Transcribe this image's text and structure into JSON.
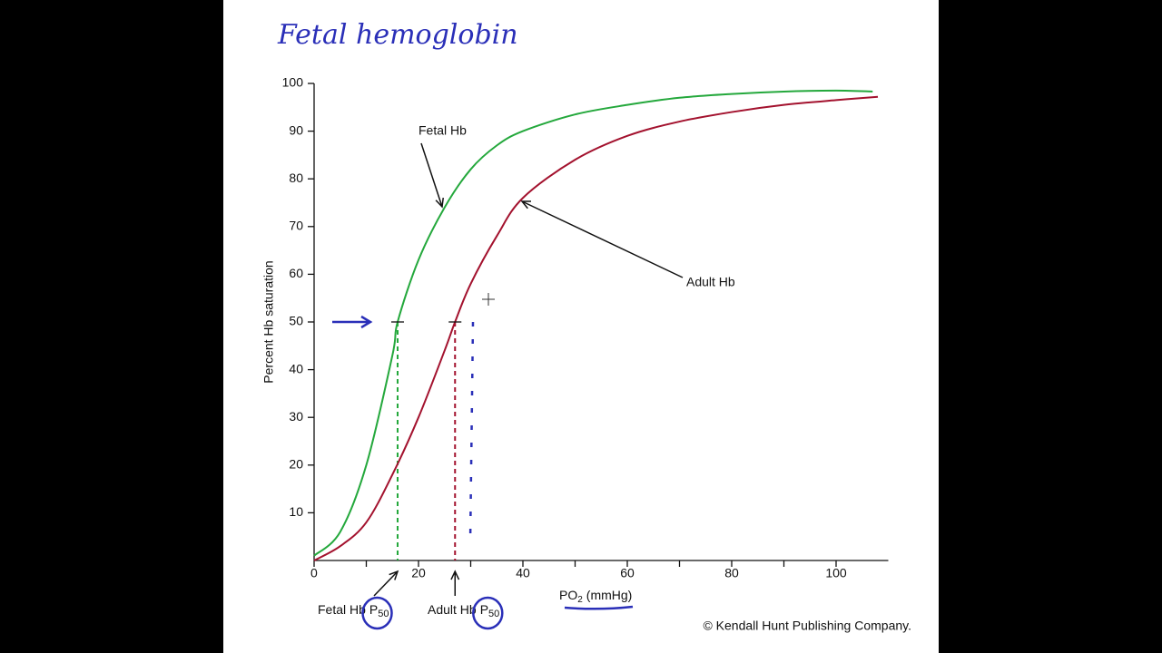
{
  "chart_data": {
    "type": "line",
    "title": "Fetal hemoglobin",
    "y_label": "Percent Hb saturation",
    "x_label": {
      "main": "PO",
      "sub": "2",
      "rest": "(mmHg)"
    },
    "xlim": [
      0,
      110
    ],
    "ylim": [
      0,
      100
    ],
    "xticks": [
      0,
      20,
      40,
      60,
      80,
      100
    ],
    "x_minor_ticks": [
      10,
      30,
      50,
      70,
      90
    ],
    "yticks": [
      10,
      20,
      30,
      40,
      50,
      60,
      70,
      80,
      90,
      100
    ],
    "series": [
      {
        "name": "Fetal Hb",
        "color": "#24a83c",
        "p50": 16,
        "x": [
          0,
          5,
          10,
          15,
          16,
          20,
          25,
          30,
          35,
          40,
          50,
          60,
          70,
          80,
          90,
          100,
          107
        ],
        "values": [
          1,
          6,
          20,
          43,
          50,
          63,
          74,
          82,
          87,
          90,
          93.5,
          95.5,
          97,
          97.8,
          98.3,
          98.5,
          98.3
        ]
      },
      {
        "name": "Adult Hb",
        "color": "#a3122e",
        "p50": 27,
        "x": [
          0,
          5,
          10,
          15,
          20,
          25,
          27,
          30,
          35,
          40,
          50,
          60,
          70,
          80,
          90,
          100,
          108
        ],
        "values": [
          0,
          3,
          8,
          18,
          30,
          44,
          50,
          58,
          68,
          76,
          84,
          89,
          92,
          94,
          95.5,
          96.5,
          97.2
        ]
      }
    ],
    "p50_labels": [
      {
        "text": "Fetal Hb",
        "symbol": "P",
        "sub": "50"
      },
      {
        "text": "Adult Hb",
        "symbol": "P",
        "sub": "50"
      }
    ],
    "credit": "© Kendall Hunt Publishing Company."
  }
}
